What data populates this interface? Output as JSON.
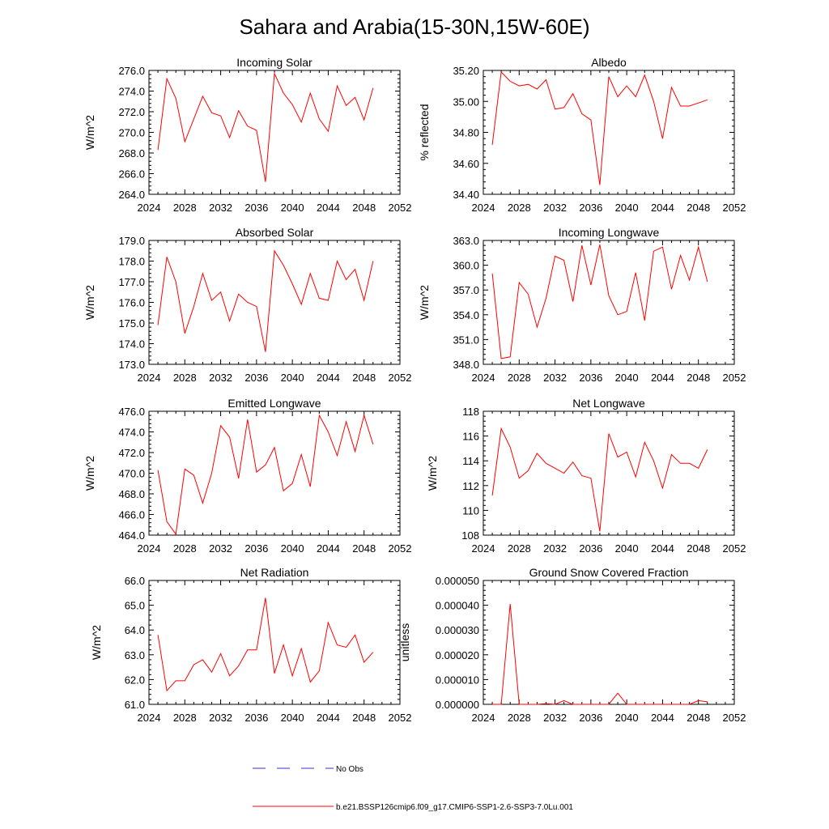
{
  "figure_title": "Sahara and Arabia(15-30N,15W-60E)",
  "legend": {
    "position": "bottom-center",
    "entries": [
      {
        "label": "No Obs",
        "color": "#3333cc",
        "style": "dashed"
      },
      {
        "label": "b.e21.BSSP126cmip6.f09_g17.CMIP6-SSP1-2.6-SSP3-7.0Lu.001",
        "color": "#ff0000",
        "style": "solid"
      }
    ]
  },
  "chart_data": [
    {
      "type": "line",
      "title": "Incoming Solar",
      "xlabel": "",
      "ylabel": "W/m^2",
      "xlim": [
        2024,
        2052
      ],
      "ylim": [
        264.0,
        276.0
      ],
      "xticks": [
        "2024",
        "2028",
        "2032",
        "2036",
        "2040",
        "2044",
        "2048",
        "2052"
      ],
      "yticks": [
        "264.0",
        "266.0",
        "268.0",
        "270.0",
        "272.0",
        "274.0",
        "276.0"
      ],
      "series": [
        {
          "color": "#ff0000",
          "x": [
            2025,
            2026,
            2027,
            2028,
            2029,
            2030,
            2031,
            2032,
            2033,
            2034,
            2035,
            2036,
            2037,
            2038,
            2039,
            2040,
            2041,
            2042,
            2043,
            2044,
            2045,
            2046,
            2047,
            2048,
            2049
          ],
          "y": [
            268.3,
            275.2,
            273.3,
            269.1,
            271.3,
            273.5,
            271.9,
            271.6,
            269.5,
            272.1,
            270.6,
            270.2,
            265.2,
            275.7,
            273.8,
            272.7,
            271.0,
            273.8,
            271.3,
            270.1,
            274.5,
            272.6,
            273.4,
            271.2,
            274.3
          ]
        }
      ]
    },
    {
      "type": "line",
      "title": "Albedo",
      "xlabel": "",
      "ylabel": "% reflected",
      "xlim": [
        2024,
        2052
      ],
      "ylim": [
        34.4,
        35.2
      ],
      "xticks": [
        "2024",
        "2028",
        "2032",
        "2036",
        "2040",
        "2044",
        "2048",
        "2052"
      ],
      "yticks": [
        "34.40",
        "34.60",
        "34.80",
        "35.00",
        "35.20"
      ],
      "series": [
        {
          "color": "#ff0000",
          "x": [
            2025,
            2026,
            2027,
            2028,
            2029,
            2030,
            2031,
            2032,
            2033,
            2034,
            2035,
            2036,
            2037,
            2038,
            2039,
            2040,
            2041,
            2042,
            2043,
            2044,
            2045,
            2046,
            2047,
            2048,
            2049
          ],
          "y": [
            34.72,
            35.19,
            35.13,
            35.1,
            35.11,
            35.08,
            35.14,
            34.95,
            34.96,
            35.05,
            34.92,
            34.88,
            34.46,
            35.16,
            35.03,
            35.1,
            35.03,
            35.17,
            35.0,
            34.76,
            35.09,
            34.97,
            34.97,
            34.99,
            35.01
          ]
        }
      ]
    },
    {
      "type": "line",
      "title": "Absorbed Solar",
      "xlabel": "",
      "ylabel": "W/m^2",
      "xlim": [
        2024,
        2052
      ],
      "ylim": [
        173.0,
        179.0
      ],
      "xticks": [
        "2024",
        "2028",
        "2032",
        "2036",
        "2040",
        "2044",
        "2048",
        "2052"
      ],
      "yticks": [
        "173.0",
        "174.0",
        "175.0",
        "176.0",
        "177.0",
        "178.0",
        "179.0"
      ],
      "series": [
        {
          "color": "#ff0000",
          "x": [
            2025,
            2026,
            2027,
            2028,
            2029,
            2030,
            2031,
            2032,
            2033,
            2034,
            2035,
            2036,
            2037,
            2038,
            2039,
            2040,
            2041,
            2042,
            2043,
            2044,
            2045,
            2046,
            2047,
            2048,
            2049
          ],
          "y": [
            174.9,
            178.2,
            177.0,
            174.5,
            175.8,
            177.4,
            176.1,
            176.5,
            175.1,
            176.4,
            176.0,
            175.8,
            173.6,
            178.5,
            177.8,
            176.9,
            175.9,
            177.4,
            176.2,
            176.1,
            178.0,
            177.1,
            177.6,
            176.1,
            178.0
          ]
        }
      ]
    },
    {
      "type": "line",
      "title": "Incoming Longwave",
      "xlabel": "",
      "ylabel": "W/m^2",
      "xlim": [
        2024,
        2052
      ],
      "ylim": [
        348.0,
        363.0
      ],
      "xticks": [
        "2024",
        "2028",
        "2032",
        "2036",
        "2040",
        "2044",
        "2048",
        "2052"
      ],
      "yticks": [
        "348.0",
        "351.0",
        "354.0",
        "357.0",
        "360.0",
        "363.0"
      ],
      "series": [
        {
          "color": "#ff0000",
          "x": [
            2025,
            2026,
            2027,
            2028,
            2029,
            2030,
            2031,
            2032,
            2033,
            2034,
            2035,
            2036,
            2037,
            2038,
            2039,
            2040,
            2041,
            2042,
            2043,
            2044,
            2045,
            2046,
            2047,
            2048,
            2049
          ],
          "y": [
            359.0,
            348.7,
            348.9,
            357.9,
            356.5,
            352.5,
            356.0,
            361.1,
            360.6,
            355.6,
            362.4,
            357.6,
            362.5,
            356.3,
            354.0,
            354.4,
            359.1,
            353.3,
            361.7,
            362.2,
            357.1,
            361.2,
            358.2,
            362.2,
            358.0
          ]
        }
      ]
    },
    {
      "type": "line",
      "title": "Emitted Longwave",
      "xlabel": "",
      "ylabel": "W/m^2",
      "xlim": [
        2024,
        2052
      ],
      "ylim": [
        464.0,
        476.0
      ],
      "xticks": [
        "2024",
        "2028",
        "2032",
        "2036",
        "2040",
        "2044",
        "2048",
        "2052"
      ],
      "yticks": [
        "464.0",
        "466.0",
        "468.0",
        "470.0",
        "472.0",
        "474.0",
        "476.0"
      ],
      "series": [
        {
          "color": "#ff0000",
          "x": [
            2025,
            2026,
            2027,
            2028,
            2029,
            2030,
            2031,
            2032,
            2033,
            2034,
            2035,
            2036,
            2037,
            2038,
            2039,
            2040,
            2041,
            2042,
            2043,
            2044,
            2045,
            2046,
            2047,
            2048,
            2049
          ],
          "y": [
            470.3,
            465.3,
            464.1,
            470.4,
            469.8,
            467.1,
            470.0,
            474.6,
            473.5,
            469.5,
            475.2,
            470.1,
            470.8,
            472.5,
            468.3,
            469.0,
            471.8,
            468.7,
            475.6,
            474.0,
            471.7,
            475.0,
            472.1,
            475.6,
            472.8
          ]
        }
      ]
    },
    {
      "type": "line",
      "title": "Net Longwave",
      "xlabel": "",
      "ylabel": "W/m^2",
      "xlim": [
        2024,
        2052
      ],
      "ylim": [
        108,
        118
      ],
      "xticks": [
        "2024",
        "2028",
        "2032",
        "2036",
        "2040",
        "2044",
        "2048",
        "2052"
      ],
      "yticks": [
        "108",
        "110",
        "112",
        "114",
        "116",
        "118"
      ],
      "series": [
        {
          "color": "#ff0000",
          "x": [
            2025,
            2026,
            2027,
            2028,
            2029,
            2030,
            2031,
            2032,
            2033,
            2034,
            2035,
            2036,
            2037,
            2038,
            2039,
            2040,
            2041,
            2042,
            2043,
            2044,
            2045,
            2046,
            2047,
            2048,
            2049
          ],
          "y": [
            111.2,
            116.6,
            115.1,
            112.6,
            113.2,
            114.6,
            113.8,
            113.4,
            113.0,
            113.9,
            112.8,
            112.6,
            108.3,
            116.2,
            114.3,
            114.7,
            112.7,
            115.5,
            114.0,
            111.8,
            114.5,
            113.8,
            113.8,
            113.4,
            114.9
          ]
        }
      ]
    },
    {
      "type": "line",
      "title": "Net Radiation",
      "xlabel": "",
      "ylabel": "W/m^2",
      "xlim": [
        2024,
        2052
      ],
      "ylim": [
        61.0,
        66.0
      ],
      "xticks": [
        "2024",
        "2028",
        "2032",
        "2036",
        "2040",
        "2044",
        "2048",
        "2052"
      ],
      "yticks": [
        "61.0",
        "62.0",
        "63.0",
        "64.0",
        "65.0",
        "66.0"
      ],
      "series": [
        {
          "color": "#ff0000",
          "x": [
            2025,
            2026,
            2027,
            2028,
            2029,
            2030,
            2031,
            2032,
            2033,
            2034,
            2035,
            2036,
            2037,
            2038,
            2039,
            2040,
            2041,
            2042,
            2043,
            2044,
            2045,
            2046,
            2047,
            2048,
            2049
          ],
          "y": [
            63.8,
            61.55,
            61.95,
            61.95,
            62.6,
            62.8,
            62.3,
            63.05,
            62.15,
            62.55,
            63.2,
            63.2,
            65.3,
            62.25,
            63.4,
            62.15,
            63.25,
            61.9,
            62.35,
            64.3,
            63.4,
            63.3,
            63.8,
            62.7,
            63.1
          ]
        }
      ]
    },
    {
      "type": "line",
      "title": "Ground Snow Covered Fraction",
      "xlabel": "",
      "ylabel": "unitless",
      "xlim": [
        2024,
        2052
      ],
      "ylim": [
        0.0,
        5e-05
      ],
      "xticks": [
        "2024",
        "2028",
        "2032",
        "2036",
        "2040",
        "2044",
        "2048",
        "2052"
      ],
      "yticks": [
        "0.000000",
        "0.000010",
        "0.000020",
        "0.000030",
        "0.000040",
        "0.000050"
      ],
      "series": [
        {
          "color": "#ff0000",
          "x": [
            2025,
            2026,
            2027,
            2028,
            2029,
            2030,
            2031,
            2032,
            2033,
            2034,
            2035,
            2036,
            2037,
            2038,
            2039,
            2040,
            2041,
            2042,
            2043,
            2044,
            2045,
            2046,
            2047,
            2048,
            2049
          ],
          "y": [
            0.0,
            0.0,
            4.05e-05,
            0.0,
            0.0,
            0.0,
            3e-07,
            0.0,
            1.5e-06,
            0.0,
            0.0,
            0.0,
            0.0,
            0.0,
            4.5e-06,
            0.0,
            0.0,
            0.0,
            0.0,
            0.0,
            0.0,
            0.0,
            0.0,
            1.5e-06,
            1e-06
          ]
        }
      ]
    }
  ]
}
